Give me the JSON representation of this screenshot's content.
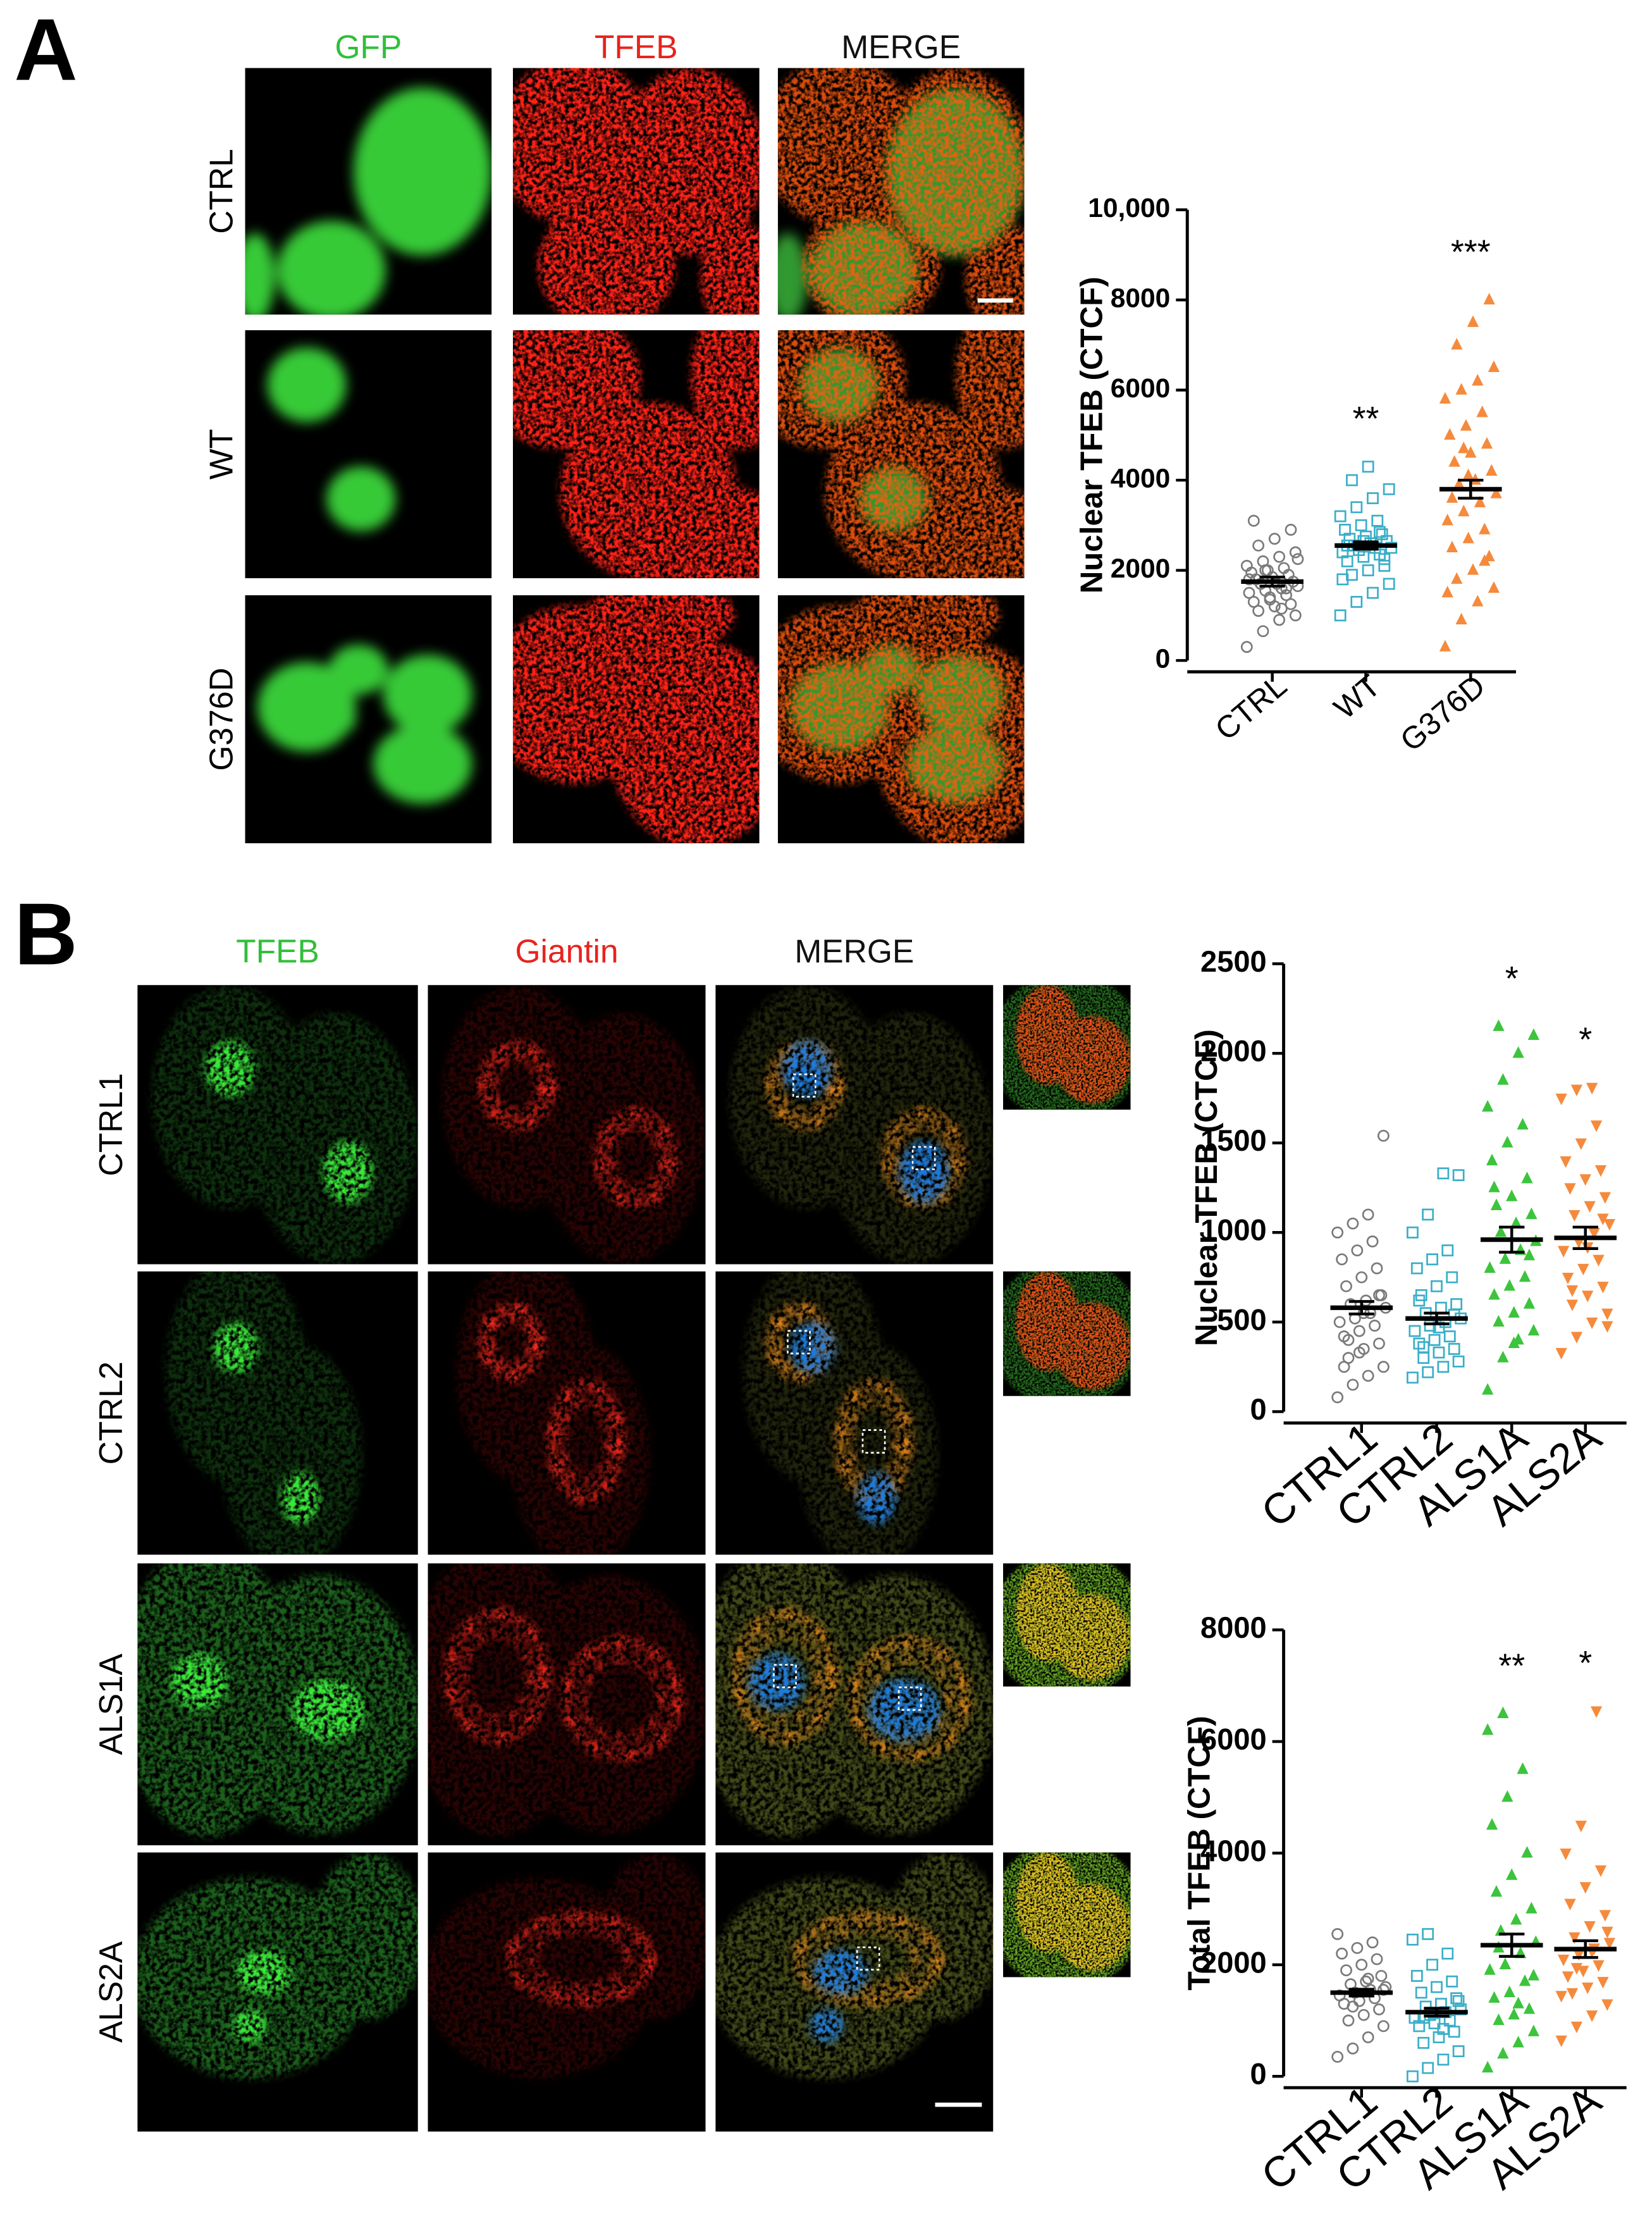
{
  "panels": [
    {
      "label": "A",
      "columns": [
        {
          "text": "GFP",
          "color": "#2fbf3a"
        },
        {
          "text": "TFEB",
          "color": "#e8231c"
        },
        {
          "text": "MERGE",
          "color": "#111111"
        }
      ],
      "rows": [
        "CTRL",
        "WT",
        "G376D"
      ]
    },
    {
      "label": "B",
      "columns": [
        {
          "text": "TFEB",
          "color": "#2fbf3a"
        },
        {
          "text": "Giantin",
          "color": "#e8231c"
        },
        {
          "text": "MERGE",
          "color": "#111111"
        }
      ],
      "rows": [
        "CTRL1",
        "CTRL2",
        "ALS1A",
        "ALS2A"
      ]
    }
  ],
  "chart_data": [
    {
      "type": "dotplot",
      "y_label": "Nuclear TFEB (CTCF)",
      "ylim": [
        0,
        10000
      ],
      "yticks": [
        0,
        2000,
        4000,
        6000,
        8000,
        {
          "value": 10000,
          "label": "10,000"
        }
      ],
      "categories": [
        "CTRL",
        "WT",
        "G376D"
      ],
      "groups": [
        {
          "color": "#7a7a7a",
          "marker": "circle-open",
          "mean": 1750,
          "sem": 100,
          "values": [
            300,
            650,
            900,
            1000,
            1100,
            1200,
            1250,
            1300,
            1400,
            1450,
            1500,
            1550,
            1600,
            1650,
            1700,
            1700,
            1750,
            1800,
            1850,
            1900,
            1950,
            2000,
            2050,
            2100,
            2200,
            2300,
            2400,
            2550,
            2700,
            2900,
            3100,
            1350,
            1600,
            1800,
            2000,
            1150,
            2250
          ]
        },
        {
          "color": "#3aaec8",
          "marker": "square-open",
          "mean": 2550,
          "sem": 80,
          "annotation": "**",
          "values": [
            1000,
            1300,
            1500,
            1700,
            1900,
            2000,
            2100,
            2200,
            2300,
            2350,
            2400,
            2450,
            2500,
            2500,
            2550,
            2600,
            2650,
            2700,
            2750,
            2800,
            2900,
            3000,
            3100,
            3200,
            3400,
            3600,
            3800,
            4000,
            4300,
            2250,
            2550,
            2650,
            2850,
            1800
          ]
        },
        {
          "color": "#f58a3c",
          "marker": "triangle",
          "mean": 3800,
          "sem": 200,
          "annotation": "***",
          "values": [
            300,
            900,
            1300,
            1600,
            1800,
            2000,
            2300,
            2500,
            2700,
            2900,
            3100,
            3300,
            3500,
            3700,
            3900,
            4000,
            4200,
            4400,
            4600,
            4800,
            5000,
            5200,
            5500,
            5800,
            6000,
            6200,
            6500,
            7000,
            7500,
            8000,
            3600,
            4100,
            2200,
            1500,
            4700
          ]
        }
      ]
    },
    {
      "type": "dotplot",
      "y_label": "Nuclear TFEB (CTCF)",
      "ylim": [
        0,
        2500
      ],
      "yticks": [
        0,
        500,
        1000,
        1500,
        2000,
        2500
      ],
      "categories": [
        "CTRL1",
        "CTRL2",
        "ALS1A",
        "ALS2A"
      ],
      "groups": [
        {
          "color": "#7a7a7a",
          "marker": "circle-open",
          "mean": 580,
          "sem": 35,
          "values": [
            80,
            150,
            200,
            250,
            300,
            350,
            380,
            420,
            450,
            480,
            500,
            520,
            550,
            580,
            600,
            620,
            650,
            700,
            750,
            800,
            850,
            900,
            950,
            1000,
            1050,
            1100,
            1540,
            400,
            550,
            650,
            250,
            330
          ]
        },
        {
          "color": "#3aaec8",
          "marker": "square-open",
          "mean": 520,
          "sem": 30,
          "values": [
            190,
            220,
            250,
            280,
            300,
            330,
            350,
            380,
            400,
            420,
            450,
            480,
            500,
            520,
            550,
            580,
            600,
            650,
            700,
            750,
            800,
            850,
            900,
            1000,
            1100,
            1330,
            1320,
            360,
            470,
            540,
            620
          ]
        },
        {
          "color": "#3cc43c",
          "marker": "triangle",
          "mean": 960,
          "sem": 70,
          "annotation": "*",
          "values": [
            120,
            300,
            400,
            450,
            500,
            550,
            600,
            650,
            700,
            750,
            800,
            850,
            900,
            950,
            1000,
            1050,
            1100,
            1150,
            1200,
            1300,
            1400,
            1500,
            1600,
            1700,
            1850,
            2000,
            2100,
            2150,
            380,
            870,
            1250
          ]
        },
        {
          "color": "#f58a3c",
          "marker": "triangle-down",
          "mean": 970,
          "sem": 60,
          "annotation": "*",
          "values": [
            330,
            420,
            500,
            550,
            600,
            650,
            700,
            750,
            800,
            850,
            900,
            950,
            1000,
            1050,
            1100,
            1150,
            1200,
            1250,
            1300,
            1350,
            1400,
            1500,
            1600,
            1750,
            1800,
            1810,
            480,
            680,
            920,
            1080
          ]
        }
      ]
    },
    {
      "type": "dotplot",
      "y_label": "Total TFEB (CTCF)",
      "ylim": [
        0,
        8000
      ],
      "yticks": [
        0,
        2000,
        4000,
        6000,
        8000
      ],
      "categories": [
        "CTRL1",
        "CTRL2",
        "ALS1A",
        "ALS2A"
      ],
      "groups": [
        {
          "color": "#7a7a7a",
          "marker": "circle-open",
          "mean": 1500,
          "sem": 60,
          "values": [
            350,
            500,
            700,
            900,
            1000,
            1100,
            1200,
            1300,
            1350,
            1400,
            1450,
            1500,
            1550,
            1600,
            1650,
            1700,
            1800,
            1900,
            2000,
            2100,
            2200,
            2300,
            2400,
            2550,
            1250,
            1750,
            1550
          ]
        },
        {
          "color": "#3aaec8",
          "marker": "square-open",
          "mean": 1150,
          "sem": 70,
          "values": [
            0,
            150,
            300,
            450,
            600,
            700,
            800,
            900,
            950,
            1000,
            1050,
            1100,
            1150,
            1200,
            1250,
            1300,
            1400,
            1500,
            1600,
            1700,
            1800,
            2000,
            2200,
            2450,
            2550,
            850,
            1350,
            1050
          ]
        },
        {
          "color": "#3cc43c",
          "marker": "triangle",
          "mean": 2350,
          "sem": 200,
          "annotation": "**",
          "values": [
            150,
            400,
            600,
            800,
            1000,
            1100,
            1200,
            1400,
            1500,
            1700,
            1900,
            2000,
            2200,
            2400,
            2600,
            2800,
            3000,
            3300,
            3600,
            4000,
            4500,
            5000,
            5500,
            6200,
            6500,
            1300,
            1800,
            2300
          ]
        },
        {
          "color": "#f58a3c",
          "marker": "triangle-down",
          "mean": 2280,
          "sem": 150,
          "annotation": "*",
          "values": [
            650,
            900,
            1100,
            1300,
            1500,
            1600,
            1700,
            1800,
            1900,
            2000,
            2100,
            2200,
            2300,
            2400,
            2500,
            2700,
            2900,
            3100,
            3400,
            3700,
            4000,
            4500,
            6550,
            1450,
            1950,
            2250,
            2600
          ]
        }
      ]
    }
  ]
}
